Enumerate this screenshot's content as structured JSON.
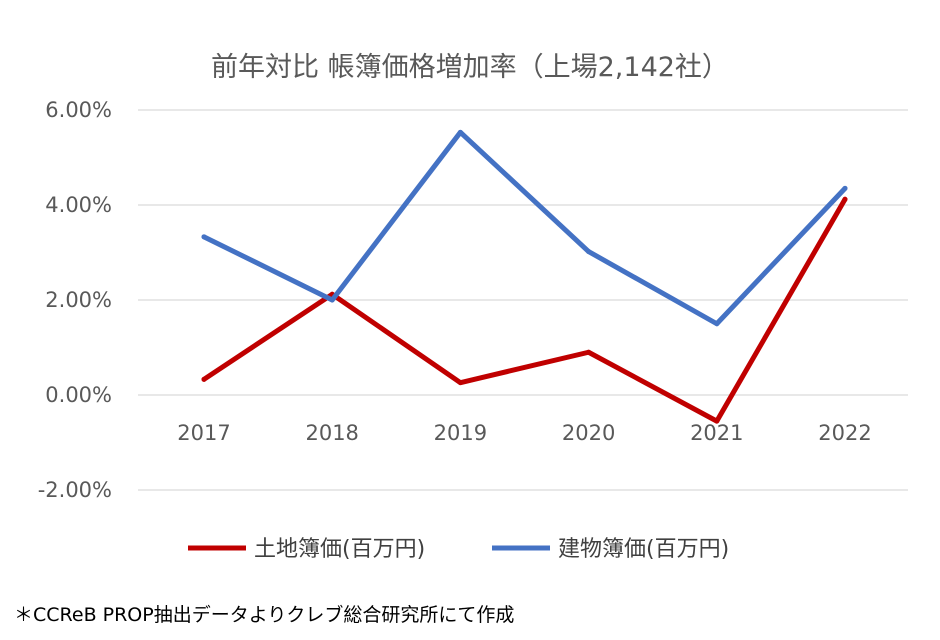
{
  "chart_data": {
    "type": "line",
    "title": "前年対比 帳簿価格増加率（上場2,142社）",
    "categories": [
      "2017",
      "2018",
      "2019",
      "2020",
      "2021",
      "2022"
    ],
    "y_ticks": [
      "6.00%",
      "4.00%",
      "2.00%",
      "0.00%",
      "-2.00%"
    ],
    "ylim": [
      -2.0,
      6.0
    ],
    "grid": true,
    "legend_position": "bottom",
    "series": [
      {
        "name": "土地簿価(百万円)",
        "color": "#C00000",
        "values": [
          0.33,
          2.12,
          0.26,
          0.9,
          -0.55,
          4.12
        ]
      },
      {
        "name": "建物簿価(百万円)",
        "color": "#4472C4",
        "values": [
          3.33,
          2.0,
          5.53,
          3.02,
          1.5,
          4.35
        ]
      }
    ]
  },
  "footnote": "＊CCReB PROP抽出データよりクレブ総合研究所にて作成"
}
